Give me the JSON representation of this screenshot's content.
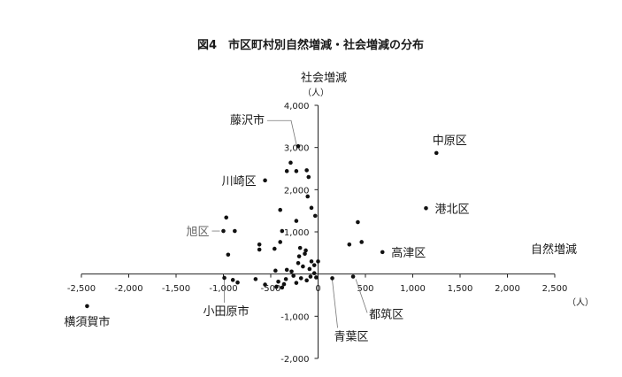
{
  "chart_data": {
    "type": "scatter",
    "title": "図4　市区町村別自然増減・社会増減の分布",
    "xlabel": "自然増減",
    "ylabel": "社会増減",
    "xunit": "（人）",
    "yunit": "（人）",
    "xlim": [
      -2500,
      2500
    ],
    "ylim": [
      -2000,
      4000
    ],
    "xticks": [
      {
        "value": -2500,
        "label": "-2,500"
      },
      {
        "value": -2000,
        "label": "-2,000"
      },
      {
        "value": -1500,
        "label": "-1,500"
      },
      {
        "value": -1000,
        "label": "-1,000"
      },
      {
        "value": -500,
        "label": "-500"
      },
      {
        "value": 0,
        "label": "0"
      },
      {
        "value": 500,
        "label": "500"
      },
      {
        "value": 1000,
        "label": "1,000"
      },
      {
        "value": 1500,
        "label": "1,500"
      },
      {
        "value": 2000,
        "label": "2,000"
      },
      {
        "value": 2500,
        "label": "2,500"
      }
    ],
    "yticks": [
      {
        "value": -2000,
        "label": "-2,000"
      },
      {
        "value": -1000,
        "label": "-1,000"
      },
      {
        "value": 1000,
        "label": "1,000"
      },
      {
        "value": 2000,
        "label": "2,000"
      },
      {
        "value": 3000,
        "label": "3,000"
      },
      {
        "value": 4000,
        "label": "4,000"
      }
    ],
    "grid": false,
    "points": [
      {
        "x": -2440,
        "y": -760
      },
      {
        "x": 1250,
        "y": 2870
      },
      {
        "x": 1140,
        "y": 1560
      },
      {
        "x": 680,
        "y": 520
      },
      {
        "x": 370,
        "y": -60
      },
      {
        "x": 150,
        "y": -100
      },
      {
        "x": -990,
        "y": -90
      },
      {
        "x": -1000,
        "y": 1020
      },
      {
        "x": -970,
        "y": 1340
      },
      {
        "x": -880,
        "y": 1020
      },
      {
        "x": -950,
        "y": 460
      },
      {
        "x": -900,
        "y": -140
      },
      {
        "x": -850,
        "y": -200
      },
      {
        "x": -620,
        "y": 580
      },
      {
        "x": -620,
        "y": 700
      },
      {
        "x": -560,
        "y": 2220
      },
      {
        "x": -460,
        "y": 600
      },
      {
        "x": -400,
        "y": 760
      },
      {
        "x": -380,
        "y": 1020
      },
      {
        "x": -400,
        "y": 1520
      },
      {
        "x": -330,
        "y": 2440
      },
      {
        "x": -290,
        "y": 2640
      },
      {
        "x": -210,
        "y": 3030
      },
      {
        "x": -230,
        "y": 2440
      },
      {
        "x": -120,
        "y": 2460
      },
      {
        "x": -100,
        "y": 2300
      },
      {
        "x": -110,
        "y": 1840
      },
      {
        "x": -70,
        "y": 1570
      },
      {
        "x": -30,
        "y": 1380
      },
      {
        "x": -230,
        "y": 1260
      },
      {
        "x": -190,
        "y": 620
      },
      {
        "x": -200,
        "y": 420
      },
      {
        "x": -140,
        "y": 480
      },
      {
        "x": -130,
        "y": 560
      },
      {
        "x": -210,
        "y": 260
      },
      {
        "x": -160,
        "y": 180
      },
      {
        "x": -90,
        "y": 120
      },
      {
        "x": -70,
        "y": 300
      },
      {
        "x": -40,
        "y": 210
      },
      {
        "x": 0,
        "y": 300
      },
      {
        "x": -280,
        "y": 60
      },
      {
        "x": -260,
        "y": -40
      },
      {
        "x": -180,
        "y": -100
      },
      {
        "x": -120,
        "y": -150
      },
      {
        "x": -80,
        "y": -60
      },
      {
        "x": -40,
        "y": 20
      },
      {
        "x": -20,
        "y": -80
      },
      {
        "x": -340,
        "y": -120
      },
      {
        "x": -360,
        "y": -240
      },
      {
        "x": -380,
        "y": -320
      },
      {
        "x": -440,
        "y": -300
      },
      {
        "x": -420,
        "y": -180
      },
      {
        "x": -560,
        "y": -250
      },
      {
        "x": -660,
        "y": -120
      },
      {
        "x": -450,
        "y": 80
      },
      {
        "x": -330,
        "y": 100
      },
      {
        "x": -230,
        "y": -210
      },
      {
        "x": 330,
        "y": 700
      },
      {
        "x": 420,
        "y": 1230
      },
      {
        "x": 460,
        "y": 760
      }
    ],
    "annotations": [
      {
        "text": "横須賀市",
        "x": -2440,
        "y": -760
      },
      {
        "text": "中原区",
        "x": 1250,
        "y": 2870
      },
      {
        "text": "港北区",
        "x": 1140,
        "y": 1560
      },
      {
        "text": "高津区",
        "x": 680,
        "y": 520
      },
      {
        "text": "都筑区",
        "x": 370,
        "y": -60
      },
      {
        "text": "青葉区",
        "x": 150,
        "y": -100
      },
      {
        "text": "藤沢市",
        "x": -210,
        "y": 3030
      },
      {
        "text": "川崎区",
        "x": -560,
        "y": 2220
      },
      {
        "text": "旭区",
        "x": -1000,
        "y": 1020
      },
      {
        "text": "小田原市",
        "x": -990,
        "y": -90
      }
    ]
  }
}
